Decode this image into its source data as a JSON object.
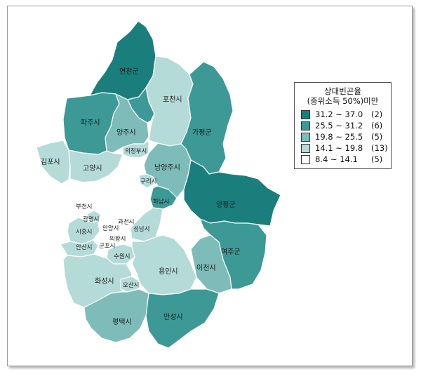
{
  "legend": {
    "title_line1": "상대빈곤율",
    "title_line2": "(중위소득 50%)미만",
    "classes": [
      {
        "range": "31.2 ~ 37.0",
        "count": "(2)",
        "color": "#1a7f7c"
      },
      {
        "range": "25.5 ~ 31.2",
        "count": "(6)",
        "color": "#3c9995"
      },
      {
        "range": "19.8 ~ 25.5",
        "count": "(5)",
        "color": "#7dbcb8"
      },
      {
        "range": "14.1 ~ 19.8",
        "count": "(13)",
        "color": "#b5dbd8"
      },
      {
        "range": "8.4 ~ 14.1",
        "count": "(5)",
        "color": "#ffffff"
      }
    ]
  },
  "regions": {
    "yeoncheon": "연천군",
    "pocheon": "포천시",
    "paju": "파주시",
    "yangju": "양주시",
    "gapyeong": "가평군",
    "uijeongbu": "의정부시",
    "gimpo": "김포시",
    "goyang": "고양시",
    "namyangju": "남양주시",
    "guri": "구리시",
    "yangpyeong": "양평군",
    "hanam": "하남시",
    "bucheon": "부천시",
    "gwangmyeong": "광명시",
    "gwacheon": "과천시",
    "anyang": "안양시",
    "siheung": "시흥시",
    "seongnam": "성남시",
    "uiwang": "의왕시",
    "ansan": "안산시",
    "gunpo": "군포시",
    "yeoju": "여주군",
    "suwon": "수원시",
    "icheon": "이천시",
    "yongin": "용인시",
    "hwaseong": "화성시",
    "osan": "오산시",
    "pyeongtaek": "평택시",
    "anseong": "안성시"
  }
}
